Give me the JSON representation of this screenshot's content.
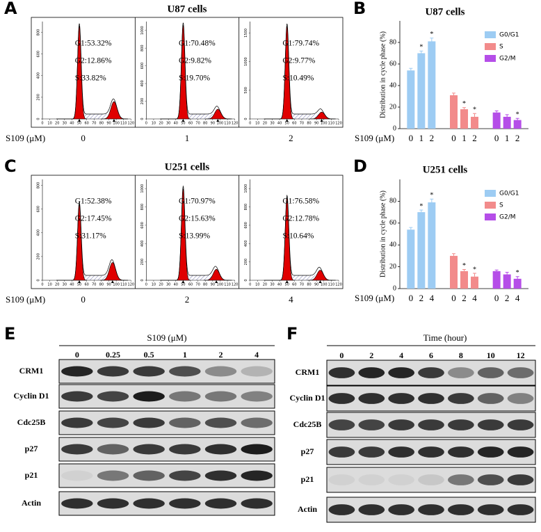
{
  "panels": [
    {
      "letter": "A",
      "type": "histogram",
      "title": "U87 cells",
      "xlabel": "S109 (μM)",
      "xlim": [
        0,
        120
      ],
      "xticks": [
        0,
        10,
        20,
        30,
        40,
        50,
        60,
        70,
        80,
        90,
        100,
        110,
        120
      ],
      "plots": [
        {
          "dose": "0",
          "ylim": [
            0,
            900
          ],
          "yticks": [
            0,
            200,
            400,
            600,
            800
          ],
          "stats": [
            "G1:53.32%",
            "G2:12.86%",
            "S:33.82%"
          ],
          "peaks": [
            {
              "x": 50,
              "height": 860
            },
            {
              "x": 97,
              "height": 160
            }
          ]
        },
        {
          "dose": "1",
          "ylim": [
            0,
            1100
          ],
          "yticks": [
            0,
            200,
            400,
            600,
            800,
            1000
          ],
          "stats": [
            "G1:70.48%",
            "G2:9.82%",
            "S:19.70%"
          ],
          "peaks": [
            {
              "x": 50,
              "height": 1060
            },
            {
              "x": 97,
              "height": 110
            }
          ]
        },
        {
          "dose": "2",
          "ylim": [
            0,
            1700
          ],
          "yticks": [
            0,
            500,
            1000,
            1500
          ],
          "stats": [
            "G1:79.74%",
            "G2:9.77%",
            "S:10.49%"
          ],
          "peaks": [
            {
              "x": 50,
              "height": 1620
            },
            {
              "x": 97,
              "height": 120
            }
          ]
        }
      ]
    },
    {
      "letter": "B",
      "type": "bar",
      "title": "U87 cells",
      "ylabel": "Distribution in cycle phase (%)",
      "xlabel": "S109 (μM)",
      "categories": [
        "0",
        "1",
        "2"
      ],
      "ylim": [
        0,
        100
      ],
      "yticks": [
        0,
        20,
        40,
        60,
        80
      ],
      "legend": "upper right",
      "series": [
        {
          "name": "G0/G1",
          "color": "#9dccf3",
          "values": [
            54,
            70,
            81
          ],
          "errors": [
            2,
            2,
            3
          ],
          "stars": [
            null,
            "*",
            "*"
          ]
        },
        {
          "name": "S",
          "color": "#f28b8b",
          "values": [
            31,
            18,
            11
          ],
          "errors": [
            2,
            1.5,
            3
          ],
          "stars": [
            null,
            "*",
            "*"
          ]
        },
        {
          "name": "G2/M",
          "color": "#b54ee8",
          "values": [
            15,
            11,
            8
          ],
          "errors": [
            1.5,
            2,
            1.5
          ],
          "stars": [
            null,
            null,
            "*"
          ]
        }
      ]
    },
    {
      "letter": "C",
      "type": "histogram",
      "title": "U251 cells",
      "xlabel": "S109 (μM)",
      "xlim": [
        0,
        120
      ],
      "xticks": [
        0,
        10,
        20,
        30,
        40,
        50,
        60,
        70,
        80,
        90,
        100,
        110,
        120
      ],
      "plots": [
        {
          "dose": "0",
          "ylim": [
            0,
            850
          ],
          "yticks": [
            0,
            200,
            400,
            600,
            800
          ],
          "stats": [
            "G1:52.38%",
            "G2:17.45%",
            "S:31.17%"
          ],
          "peaks": [
            {
              "x": 50,
              "height": 640
            },
            {
              "x": 95,
              "height": 150
            }
          ]
        },
        {
          "dose": "2",
          "ylim": [
            0,
            1100
          ],
          "yticks": [
            0,
            200,
            400,
            600,
            800,
            1000
          ],
          "stats": [
            "G1:70.97%",
            "G2:15.63%",
            "S:13.99%"
          ],
          "peaks": [
            {
              "x": 50,
              "height": 1000
            },
            {
              "x": 95,
              "height": 120
            }
          ]
        },
        {
          "dose": "4",
          "ylim": [
            0,
            1100
          ],
          "yticks": [
            0,
            200,
            400,
            600,
            800,
            1000
          ],
          "stats": [
            "G1:76.58%",
            "G2:12.78%",
            "S:10.64%"
          ],
          "peaks": [
            {
              "x": 50,
              "height": 900
            },
            {
              "x": 95,
              "height": 110
            }
          ]
        }
      ]
    },
    {
      "letter": "D",
      "type": "bar",
      "title": "U251 cells",
      "ylabel": "Distribution in cycle phase (%)",
      "xlabel": "S109 (μM)",
      "categories": [
        "0",
        "2",
        "4"
      ],
      "ylim": [
        0,
        100
      ],
      "yticks": [
        0,
        20,
        40,
        60,
        80
      ],
      "legend": "upper right",
      "series": [
        {
          "name": "G0/G1",
          "color": "#9dccf3",
          "values": [
            54,
            70,
            79
          ],
          "errors": [
            2,
            2,
            3
          ],
          "stars": [
            null,
            "*",
            "*"
          ]
        },
        {
          "name": "S",
          "color": "#f28b8b",
          "values": [
            30,
            16,
            11
          ],
          "errors": [
            2,
            1.5,
            3
          ],
          "stars": [
            null,
            "*",
            "*"
          ]
        },
        {
          "name": "G2/M",
          "color": "#b54ee8",
          "values": [
            16,
            13,
            9
          ],
          "errors": [
            1,
            2,
            2
          ],
          "stars": [
            null,
            null,
            "*"
          ]
        }
      ]
    },
    {
      "letter": "E",
      "type": "blot",
      "title": "S109 (μM)",
      "lanes": [
        "0",
        "0.25",
        "0.5",
        "1",
        "2",
        "4"
      ],
      "rows": [
        {
          "name": "CRM1",
          "intensity": [
            0.9,
            0.8,
            0.8,
            0.7,
            0.4,
            0.2
          ]
        },
        {
          "name": "Cyclin D1",
          "intensity": [
            0.8,
            0.75,
            0.95,
            0.5,
            0.5,
            0.45
          ]
        },
        {
          "name": "Cdc25B",
          "intensity": [
            0.8,
            0.75,
            0.8,
            0.6,
            0.7,
            0.55
          ]
        },
        {
          "name": "p27",
          "intensity": [
            0.8,
            0.6,
            0.8,
            0.8,
            0.85,
            0.95
          ]
        },
        {
          "name": "p21",
          "intensity": [
            0.05,
            0.5,
            0.6,
            0.75,
            0.85,
            0.9
          ]
        },
        {
          "name": "Actin",
          "intensity": [
            0.85,
            0.85,
            0.85,
            0.85,
            0.85,
            0.85
          ]
        }
      ]
    },
    {
      "letter": "F",
      "type": "blot",
      "title": "Time (hour)",
      "lanes": [
        "0",
        "2",
        "4",
        "6",
        "8",
        "10",
        "12"
      ],
      "rows": [
        {
          "name": "CRM1",
          "intensity": [
            0.85,
            0.9,
            0.9,
            0.8,
            0.4,
            0.6,
            0.55
          ]
        },
        {
          "name": "Cyclin D1",
          "intensity": [
            0.85,
            0.85,
            0.85,
            0.85,
            0.8,
            0.6,
            0.45
          ]
        },
        {
          "name": "Cdc25B",
          "intensity": [
            0.75,
            0.75,
            0.8,
            0.8,
            0.8,
            0.8,
            0.8
          ]
        },
        {
          "name": "p27",
          "intensity": [
            0.8,
            0.8,
            0.85,
            0.85,
            0.85,
            0.9,
            0.9
          ]
        },
        {
          "name": "p21",
          "intensity": [
            0.05,
            0.05,
            0.05,
            0.1,
            0.5,
            0.7,
            0.8
          ]
        },
        {
          "name": "Actin",
          "intensity": [
            0.85,
            0.85,
            0.85,
            0.85,
            0.85,
            0.85,
            0.85
          ]
        }
      ]
    }
  ]
}
